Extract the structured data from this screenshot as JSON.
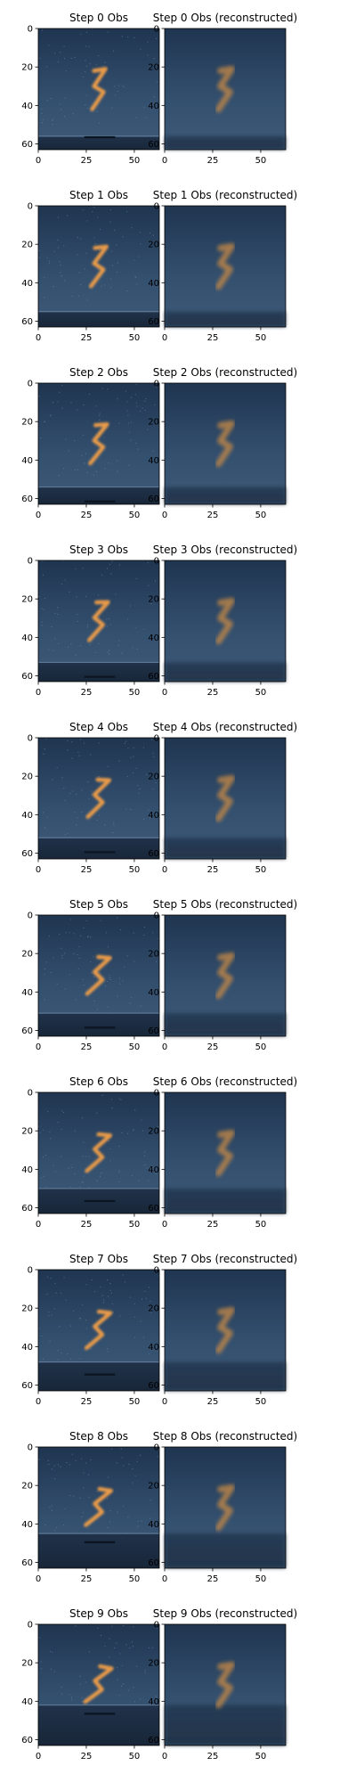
{
  "figure": {
    "rows": 10,
    "cols": 2
  },
  "chart_data": {
    "type": "image_grid",
    "xticks": [
      "0",
      "25",
      "50"
    ],
    "yticks": [
      "0",
      "20",
      "40",
      "60"
    ],
    "xlim": [
      0,
      63
    ],
    "ylim": [
      63,
      0
    ],
    "grid": false,
    "rows": [
      {
        "step": 0,
        "titles": [
          "Step 0 Obs",
          "Step 0 Obs (reconstructed)"
        ],
        "ground_y": 56,
        "shadow_y": 56,
        "digit_rot": 0
      },
      {
        "step": 1,
        "titles": [
          "Step 1 Obs",
          "Step 1 Obs (reconstructed)"
        ],
        "ground_y": 55,
        "shadow_y": null,
        "digit_rot": 3
      },
      {
        "step": 2,
        "titles": [
          "Step 2 Obs",
          "Step 2 Obs (reconstructed)"
        ],
        "ground_y": 54,
        "shadow_y": 61,
        "digit_rot": 5
      },
      {
        "step": 3,
        "titles": [
          "Step 3 Obs",
          "Step 3 Obs (reconstructed)"
        ],
        "ground_y": 53,
        "shadow_y": 60,
        "digit_rot": 8
      },
      {
        "step": 4,
        "titles": [
          "Step 4 Obs",
          "Step 4 Obs (reconstructed)"
        ],
        "ground_y": 52,
        "shadow_y": 59,
        "digit_rot": 12
      },
      {
        "step": 5,
        "titles": [
          "Step 5 Obs",
          "Step 5 Obs (reconstructed)"
        ],
        "ground_y": 51,
        "shadow_y": 58,
        "digit_rot": 14
      },
      {
        "step": 6,
        "titles": [
          "Step 6 Obs",
          "Step 6 Obs (reconstructed)"
        ],
        "ground_y": 50,
        "shadow_y": 56,
        "digit_rot": 15
      },
      {
        "step": 7,
        "titles": [
          "Step 7 Obs",
          "Step 7 Obs (reconstructed)"
        ],
        "ground_y": 48,
        "shadow_y": 54,
        "digit_rot": 16
      },
      {
        "step": 8,
        "titles": [
          "Step 8 Obs",
          "Step 8 Obs (reconstructed)"
        ],
        "ground_y": 45,
        "shadow_y": 49,
        "digit_rot": 18
      },
      {
        "step": 9,
        "titles": [
          "Step 9 Obs",
          "Step 9 Obs (reconstructed)"
        ],
        "ground_y": 42,
        "shadow_y": 46,
        "digit_rot": 20
      }
    ]
  }
}
